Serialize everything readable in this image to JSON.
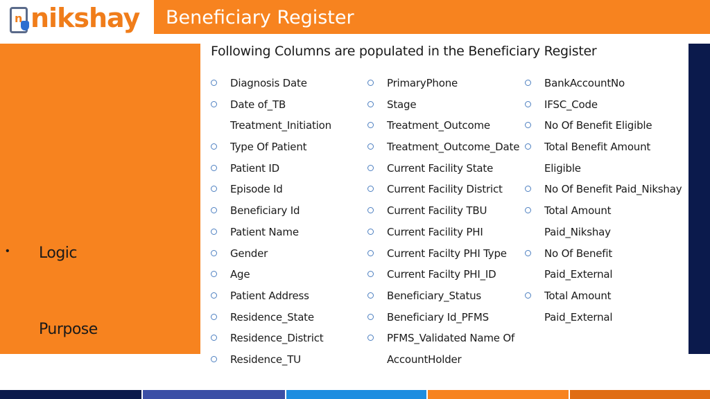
{
  "header": {
    "logo_text": "nikshay",
    "logo_phone_letter": "n",
    "title": "Beneficiary Register"
  },
  "left_panel": {
    "bullet": "•",
    "logic_label": "Logic",
    "purpose_label": "Purpose"
  },
  "subtitle": "Following Columns are populated in the Beneficiary Register",
  "columns": [
    {
      "rows": [
        {
          "marker": true,
          "text": "Diagnosis Date"
        },
        {
          "marker": true,
          "text": "Date of_TB"
        },
        {
          "marker": false,
          "text": "Treatment_Initiation"
        },
        {
          "marker": true,
          "text": "Type Of Patient"
        },
        {
          "marker": true,
          "text": "Patient ID"
        },
        {
          "marker": true,
          "text": "Episode Id"
        },
        {
          "marker": true,
          "text": "Beneficiary Id"
        },
        {
          "marker": true,
          "text": "Patient Name"
        },
        {
          "marker": true,
          "text": "Gender"
        },
        {
          "marker": true,
          "text": "Age"
        },
        {
          "marker": true,
          "text": "Patient Address"
        },
        {
          "marker": true,
          "text": "Residence_State"
        },
        {
          "marker": true,
          "text": "Residence_District"
        },
        {
          "marker": true,
          "text": "Residence_TU"
        }
      ]
    },
    {
      "rows": [
        {
          "marker": true,
          "text": "PrimaryPhone"
        },
        {
          "marker": true,
          "text": "Stage"
        },
        {
          "marker": true,
          "text": "Treatment_Outcome"
        },
        {
          "marker": true,
          "text": "Treatment_Outcome_Date"
        },
        {
          "marker": true,
          "text": "Current Facility State"
        },
        {
          "marker": true,
          "text": "Current Facility District"
        },
        {
          "marker": true,
          "text": "Current Facility TBU"
        },
        {
          "marker": true,
          "text": "Current Facility PHI"
        },
        {
          "marker": true,
          "text": "Current Facilty PHI Type"
        },
        {
          "marker": true,
          "text": "Current Facilty PHI_ID"
        },
        {
          "marker": true,
          "text": "Beneficiary_Status"
        },
        {
          "marker": true,
          "text": "Beneficiary Id_PFMS"
        },
        {
          "marker": true,
          "text": "PFMS_Validated Name Of"
        },
        {
          "marker": false,
          "text": "AccountHolder"
        }
      ]
    },
    {
      "rows": [
        {
          "marker": true,
          "text": "BankAccountNo"
        },
        {
          "marker": true,
          "text": "IFSC_Code"
        },
        {
          "marker": true,
          "text": "No Of Benefit Eligible"
        },
        {
          "marker": true,
          "text": "Total Benefit Amount"
        },
        {
          "marker": false,
          "text": "Eligible"
        },
        {
          "marker": true,
          "text": "No Of Benefit Paid_Nikshay"
        },
        {
          "marker": true,
          "text": "Total Amount"
        },
        {
          "marker": false,
          "text": "Paid_Nikshay"
        },
        {
          "marker": true,
          "text": "No Of Benefit"
        },
        {
          "marker": false,
          "text": "Paid_External"
        },
        {
          "marker": true,
          "text": "Total Amount"
        },
        {
          "marker": false,
          "text": "Paid_External"
        }
      ]
    }
  ],
  "colors": {
    "orange": "#f7831f",
    "navy": "#0b1a4c",
    "marker_blue": "#4c7fc0"
  },
  "icons": {
    "logo": "nikshay-logo-icon",
    "list_marker": "hollow-circle-icon"
  }
}
